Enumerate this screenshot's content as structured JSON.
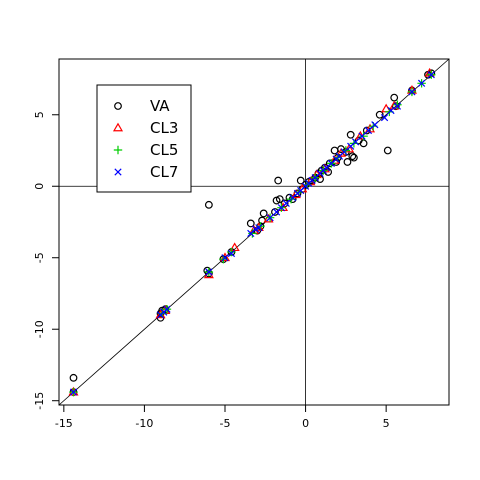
{
  "chart_data": {
    "type": "scatter",
    "title": "",
    "xlabel": "",
    "ylabel": "",
    "xlim": [
      -15.3,
      8.9
    ],
    "ylim": [
      -15.3,
      8.9
    ],
    "xticks": [
      -15,
      -10,
      -5,
      0,
      5
    ],
    "yticks": [
      -15,
      -10,
      -5,
      0,
      5
    ],
    "grid": false,
    "legend_position": "top-left",
    "reference_lines": {
      "diagonal": "y = x",
      "horizontal": 0,
      "vertical": 0
    },
    "series": [
      {
        "name": "VA",
        "marker": "circle",
        "color": "#000000",
        "points": [
          [
            -14.4,
            -13.4
          ],
          [
            -14.4,
            -14.4
          ],
          [
            -9.0,
            -9.2
          ],
          [
            -9.0,
            -8.9
          ],
          [
            -8.9,
            -8.7
          ],
          [
            -8.7,
            -8.6
          ],
          [
            -6.1,
            -5.9
          ],
          [
            -6.0,
            -1.3
          ],
          [
            -6.0,
            -6.1
          ],
          [
            -5.1,
            -5.1
          ],
          [
            -4.6,
            -4.6
          ],
          [
            -3.4,
            -2.6
          ],
          [
            -3.0,
            -3.1
          ],
          [
            -2.8,
            -2.8
          ],
          [
            -2.7,
            -2.4
          ],
          [
            -2.6,
            -1.9
          ],
          [
            -1.9,
            -1.8
          ],
          [
            -1.8,
            -1.0
          ],
          [
            -1.7,
            0.4
          ],
          [
            -1.6,
            -0.9
          ],
          [
            -1.3,
            -1.2
          ],
          [
            -1.0,
            -0.8
          ],
          [
            -0.8,
            -0.9
          ],
          [
            -0.5,
            -0.5
          ],
          [
            -0.3,
            0.4
          ],
          [
            -0.2,
            -0.2
          ],
          [
            0.0,
            0.1
          ],
          [
            0.2,
            0.3
          ],
          [
            0.4,
            0.4
          ],
          [
            0.6,
            0.6
          ],
          [
            0.8,
            0.9
          ],
          [
            0.9,
            0.5
          ],
          [
            1.0,
            1.1
          ],
          [
            1.2,
            1.3
          ],
          [
            1.4,
            1.0
          ],
          [
            1.5,
            1.6
          ],
          [
            1.8,
            2.5
          ],
          [
            1.9,
            1.7
          ],
          [
            2.0,
            2.0
          ],
          [
            2.2,
            2.6
          ],
          [
            2.5,
            2.4
          ],
          [
            2.6,
            1.7
          ],
          [
            2.8,
            3.6
          ],
          [
            2.9,
            2.1
          ],
          [
            3.0,
            2.0
          ],
          [
            3.3,
            3.2
          ],
          [
            3.6,
            3.0
          ],
          [
            3.8,
            3.9
          ],
          [
            4.6,
            5.0
          ],
          [
            5.1,
            2.5
          ],
          [
            5.5,
            6.2
          ],
          [
            5.6,
            5.6
          ],
          [
            6.6,
            6.7
          ],
          [
            7.6,
            7.8
          ],
          [
            7.8,
            7.9
          ]
        ]
      },
      {
        "name": "CL3",
        "marker": "triangle",
        "color": "#ff0000",
        "points": [
          [
            -14.4,
            -14.4
          ],
          [
            -9.0,
            -9.0
          ],
          [
            -8.7,
            -8.7
          ],
          [
            -6.0,
            -6.2
          ],
          [
            -5.0,
            -5.0
          ],
          [
            -4.4,
            -4.3
          ],
          [
            -3.2,
            -3.1
          ],
          [
            -2.9,
            -2.9
          ],
          [
            -2.3,
            -2.3
          ],
          [
            -1.4,
            -1.5
          ],
          [
            -0.6,
            -0.6
          ],
          [
            -0.2,
            -0.2
          ],
          [
            0.3,
            0.3
          ],
          [
            0.7,
            0.8
          ],
          [
            1.2,
            1.2
          ],
          [
            1.8,
            1.8
          ],
          [
            2.2,
            2.3
          ],
          [
            2.7,
            2.6
          ],
          [
            3.4,
            3.5
          ],
          [
            4.0,
            4.0
          ],
          [
            5.0,
            5.4
          ],
          [
            5.5,
            5.6
          ],
          [
            6.6,
            6.7
          ],
          [
            7.7,
            7.9
          ]
        ]
      },
      {
        "name": "CL5",
        "marker": "plus",
        "color": "#00cd00",
        "points": [
          [
            -14.4,
            -14.4
          ],
          [
            -8.9,
            -8.9
          ],
          [
            -8.6,
            -8.6
          ],
          [
            -6.0,
            -6.0
          ],
          [
            -5.1,
            -5.1
          ],
          [
            -4.6,
            -4.6
          ],
          [
            -3.3,
            -3.3
          ],
          [
            -2.8,
            -2.8
          ],
          [
            -2.2,
            -2.2
          ],
          [
            -1.5,
            -1.5
          ],
          [
            -0.9,
            -0.9
          ],
          [
            -0.4,
            -0.4
          ],
          [
            0.1,
            0.1
          ],
          [
            0.6,
            0.6
          ],
          [
            1.1,
            1.1
          ],
          [
            1.6,
            1.6
          ],
          [
            2.0,
            2.0
          ],
          [
            2.5,
            2.5
          ],
          [
            3.0,
            3.0
          ],
          [
            3.6,
            3.5
          ],
          [
            4.2,
            4.2
          ],
          [
            5.2,
            5.2
          ],
          [
            5.7,
            5.7
          ],
          [
            6.6,
            6.6
          ],
          [
            7.2,
            7.2
          ],
          [
            7.8,
            7.8
          ]
        ]
      },
      {
        "name": "CL7",
        "marker": "cross",
        "color": "#0000ff",
        "points": [
          [
            -14.4,
            -14.4
          ],
          [
            -9.0,
            -9.0
          ],
          [
            -8.8,
            -8.8
          ],
          [
            -8.6,
            -8.6
          ],
          [
            -6.0,
            -6.0
          ],
          [
            -5.0,
            -5.0
          ],
          [
            -4.6,
            -4.7
          ],
          [
            -3.4,
            -3.3
          ],
          [
            -3.1,
            -3.0
          ],
          [
            -2.9,
            -2.9
          ],
          [
            -2.2,
            -2.2
          ],
          [
            -1.8,
            -1.8
          ],
          [
            -1.5,
            -1.5
          ],
          [
            -1.2,
            -1.2
          ],
          [
            -0.8,
            -0.8
          ],
          [
            -0.5,
            -0.5
          ],
          [
            -0.3,
            -0.3
          ],
          [
            0.0,
            0.0
          ],
          [
            0.2,
            0.2
          ],
          [
            0.4,
            0.4
          ],
          [
            0.6,
            0.6
          ],
          [
            0.9,
            0.9
          ],
          [
            1.1,
            1.1
          ],
          [
            1.3,
            1.3
          ],
          [
            1.6,
            1.6
          ],
          [
            1.9,
            1.9
          ],
          [
            2.1,
            2.1
          ],
          [
            2.4,
            2.4
          ],
          [
            2.8,
            2.8
          ],
          [
            3.1,
            3.1
          ],
          [
            3.5,
            3.5
          ],
          [
            3.9,
            3.9
          ],
          [
            4.3,
            4.3
          ],
          [
            4.9,
            4.8
          ],
          [
            5.3,
            5.3
          ],
          [
            5.7,
            5.6
          ],
          [
            6.6,
            6.6
          ],
          [
            7.2,
            7.2
          ],
          [
            7.8,
            7.8
          ]
        ]
      }
    ]
  }
}
